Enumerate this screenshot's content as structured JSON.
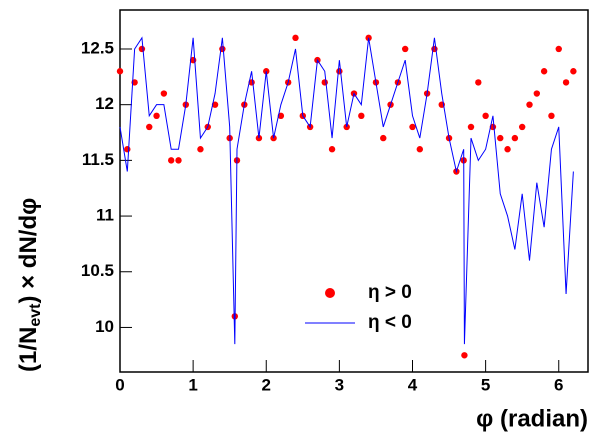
{
  "chart_data": {
    "type": "scatter",
    "xlabel": "φ (radian)",
    "ylabel": "(1/N",
    "ylabel_sub": "evt",
    "ylabel_rest": ") × dN/dφ",
    "x": [
      0.0,
      0.1,
      0.2,
      0.3,
      0.4,
      0.5,
      0.6,
      0.7,
      0.8,
      0.9,
      1.0,
      1.1,
      1.2,
      1.3,
      1.4,
      1.5,
      1.57,
      1.6,
      1.7,
      1.8,
      1.9,
      2.0,
      2.1,
      2.2,
      2.3,
      2.4,
      2.5,
      2.6,
      2.7,
      2.8,
      2.9,
      3.0,
      3.1,
      3.2,
      3.3,
      3.4,
      3.5,
      3.6,
      3.7,
      3.8,
      3.9,
      4.0,
      4.1,
      4.2,
      4.3,
      4.4,
      4.5,
      4.6,
      4.7,
      4.71,
      4.8,
      4.9,
      5.0,
      5.1,
      5.2,
      5.3,
      5.4,
      5.5,
      5.6,
      5.7,
      5.8,
      5.9,
      6.0,
      6.1,
      6.2
    ],
    "series": [
      {
        "name": "η > 0",
        "color": "#ff0000",
        "style": "marker",
        "values": [
          12.3,
          11.6,
          12.2,
          12.5,
          11.8,
          11.9,
          12.1,
          11.5,
          11.5,
          12.0,
          12.4,
          11.6,
          11.8,
          12.0,
          12.5,
          11.7,
          10.1,
          11.5,
          12.0,
          12.2,
          11.7,
          12.3,
          11.7,
          11.9,
          12.2,
          12.6,
          11.9,
          11.8,
          12.4,
          12.2,
          11.6,
          12.3,
          11.8,
          12.1,
          11.9,
          12.6,
          12.2,
          11.7,
          12.0,
          12.2,
          12.5,
          11.8,
          11.6,
          12.1,
          12.5,
          12.0,
          11.7,
          11.4,
          11.5,
          9.75,
          11.8,
          12.2,
          11.9,
          11.8,
          11.7,
          11.6,
          11.7,
          11.8,
          12.0,
          12.1,
          12.3,
          11.9,
          12.5,
          12.2,
          12.3
        ]
      },
      {
        "name": "η < 0",
        "color": "#0000ff",
        "style": "line",
        "values": [
          11.8,
          11.4,
          12.5,
          12.6,
          11.9,
          12.0,
          12.0,
          11.6,
          11.6,
          12.0,
          12.6,
          11.7,
          11.8,
          12.1,
          12.6,
          11.8,
          9.85,
          11.6,
          12.0,
          12.3,
          11.7,
          12.3,
          11.7,
          12.0,
          12.2,
          12.5,
          11.9,
          11.8,
          12.4,
          12.3,
          11.7,
          12.4,
          11.8,
          12.1,
          12.0,
          12.6,
          12.2,
          11.8,
          12.0,
          12.2,
          12.4,
          11.9,
          11.7,
          12.1,
          12.6,
          12.1,
          11.7,
          11.4,
          11.6,
          9.85,
          11.7,
          11.5,
          11.6,
          11.9,
          11.2,
          11.0,
          10.7,
          11.2,
          10.6,
          11.3,
          10.9,
          11.6,
          11.8,
          10.3,
          11.4
        ]
      }
    ],
    "xlim": [
      0,
      6.4
    ],
    "ylim": [
      9.6,
      12.85
    ],
    "xticks": [
      0,
      1,
      2,
      3,
      4,
      5,
      6
    ],
    "yticks": [
      10,
      10.5,
      11,
      11.5,
      12,
      12.5
    ]
  }
}
